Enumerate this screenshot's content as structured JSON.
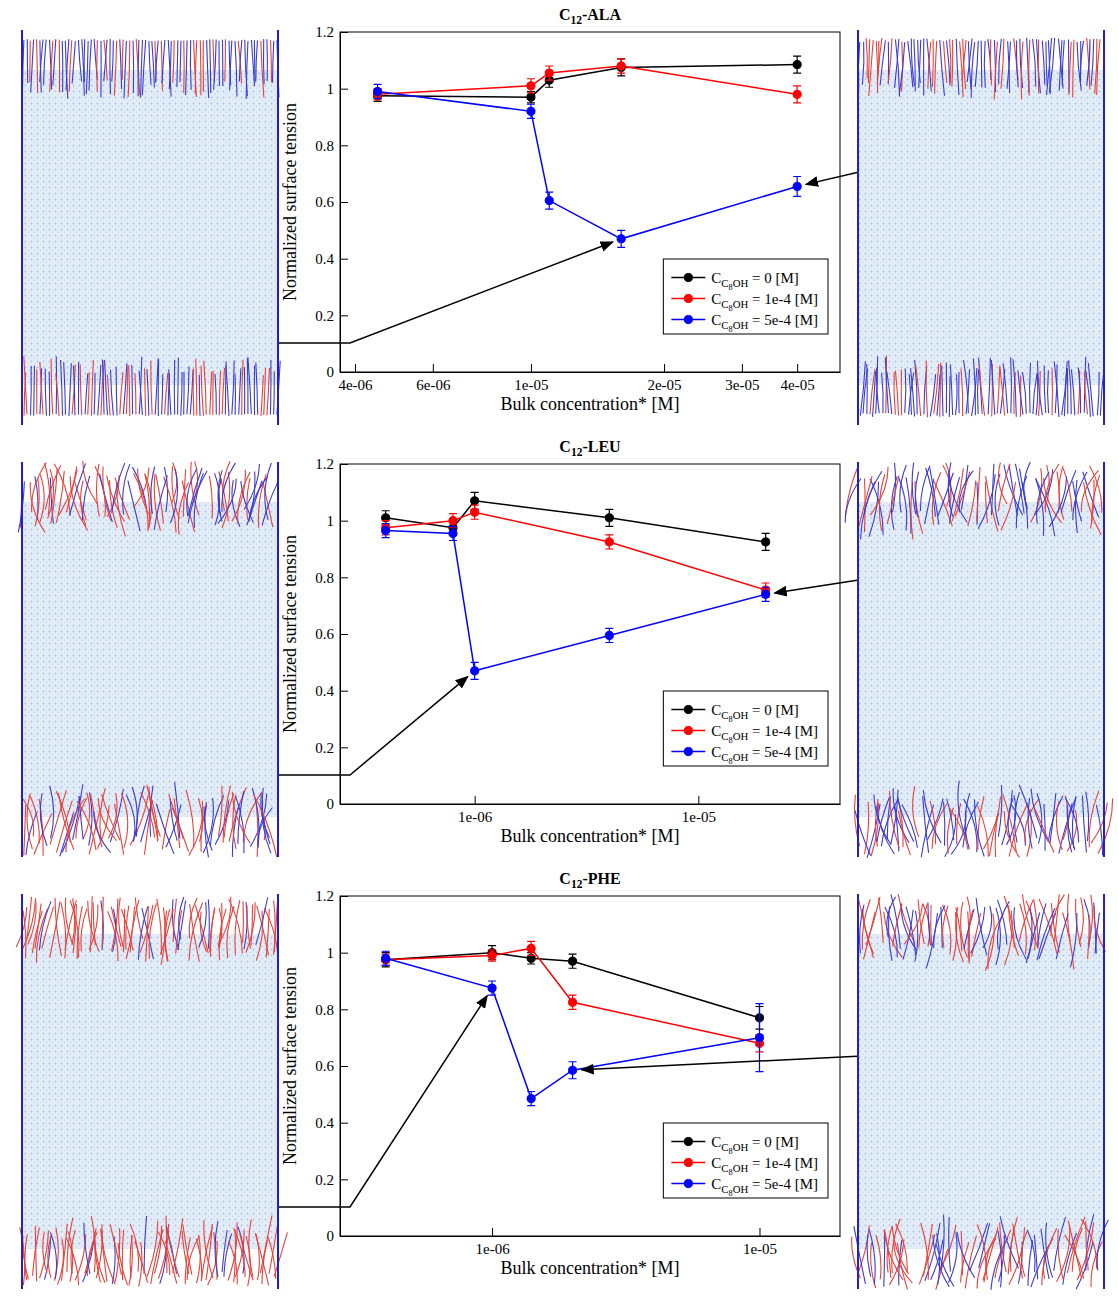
{
  "chart_data": [
    {
      "type": "line",
      "title": "C12-ALA",
      "xlabel": "Bulk concentration* [M]",
      "ylabel": "Normalized surface tension",
      "log": "x",
      "marker": "circle",
      "legend": "lower right",
      "xlim": [
        3.7e-06,
        5e-05
      ],
      "xticks": [
        {
          "value": 4e-06,
          "label": "4e-06"
        },
        {
          "value": 6e-06,
          "label": "6e-06"
        },
        {
          "value": 1e-05,
          "label": "1e-05"
        },
        {
          "value": 2e-05,
          "label": "2e-05"
        },
        {
          "value": 3e-05,
          "label": "3e-05"
        },
        {
          "value": 4e-05,
          "label": "4e-05"
        }
      ],
      "ylim": [
        0,
        1.2
      ],
      "yticks": [
        0,
        0.2,
        0.4,
        0.6,
        0.8,
        1,
        1.2
      ],
      "x": [
        4.5e-06,
        1e-05,
        1.1e-05,
        1.6e-05,
        4e-05
      ],
      "series": [
        {
          "name": "CC8OH = 0 [M]",
          "color": "#000000",
          "values": [
            0.975,
            0.97,
            1.03,
            1.075,
            1.085
          ],
          "errors": [
            0.02,
            0.02,
            0.025,
            0.03,
            0.03
          ]
        },
        {
          "name": "CC8OH = 1e-4 [M]",
          "color": "#ff0000",
          "values": [
            0.98,
            1.01,
            1.055,
            1.08,
            0.98
          ],
          "errors": [
            0.02,
            0.025,
            0.025,
            0.025,
            0.03
          ]
        },
        {
          "name": "CC8OH = 5e-4 [M]",
          "color": "#0000ff",
          "values": [
            0.99,
            0.92,
            0.605,
            0.47,
            0.655
          ],
          "errors": [
            0.025,
            0.025,
            0.03,
            0.03,
            0.035
          ]
        }
      ]
    },
    {
      "type": "line",
      "title": "C12-LEU",
      "xlabel": "Bulk concentration* [M]",
      "ylabel": "Normalized surface tension",
      "log": "x",
      "marker": "circle",
      "legend": "lower right",
      "xlim": [
        2.5e-07,
        4.3e-05
      ],
      "xticks": [
        {
          "value": 1e-06,
          "label": "1e-06"
        },
        {
          "value": 1e-05,
          "label": "1e-05"
        }
      ],
      "ylim": [
        0,
        1.2
      ],
      "yticks": [
        0,
        0.2,
        0.4,
        0.6,
        0.8,
        1,
        1.2
      ],
      "x": [
        4e-07,
        8e-07,
        1e-06,
        4e-06,
        2e-05
      ],
      "series": [
        {
          "name": "CC8OH = 0 [M]",
          "color": "#000000",
          "values": [
            1.01,
            0.975,
            1.07,
            1.01,
            0.925
          ],
          "errors": [
            0.025,
            0.025,
            0.03,
            0.03,
            0.03
          ]
        },
        {
          "name": "CC8OH = 1e-4 [M]",
          "color": "#ff0000",
          "values": [
            0.975,
            1.0,
            1.03,
            0.925,
            0.755
          ],
          "errors": [
            0.025,
            0.025,
            0.025,
            0.025,
            0.025
          ]
        },
        {
          "name": "CC8OH = 5e-4 [M]",
          "color": "#0000ff",
          "values": [
            0.965,
            0.955,
            0.47,
            0.595,
            0.74
          ],
          "errors": [
            0.025,
            0.025,
            0.03,
            0.025,
            0.025
          ]
        }
      ]
    },
    {
      "type": "line",
      "title": "C12-PHE",
      "xlabel": "Bulk concentration* [M]",
      "ylabel": "Normalized surface tension",
      "log": "x",
      "marker": "circle",
      "legend": "lower right",
      "xlim": [
        2.7e-07,
        2e-05
      ],
      "xticks": [
        {
          "value": 1e-06,
          "label": "1e-06"
        },
        {
          "value": 1e-05,
          "label": "1e-05"
        }
      ],
      "ylim": [
        0,
        1.2
      ],
      "yticks": [
        0,
        0.2,
        0.4,
        0.6,
        0.8,
        1,
        1.2
      ],
      "x": [
        4e-07,
        1e-06,
        1.4e-06,
        2e-06,
        1e-05
      ],
      "series": [
        {
          "name": "CC8OH = 0 [M]",
          "color": "#000000",
          "values": [
            0.975,
            1.0,
            0.98,
            0.97,
            0.77
          ],
          "errors": [
            0.025,
            0.025,
            0.02,
            0.025,
            0.04
          ]
        },
        {
          "name": "CC8OH = 1e-4 [M]",
          "color": "#ff0000",
          "values": [
            0.975,
            0.99,
            1.015,
            0.825,
            0.68
          ],
          "errors": [
            0.02,
            0.02,
            0.025,
            0.025,
            0.03
          ]
        },
        {
          "name": "CC8OH = 5e-4 [M]",
          "color": "#0000ff",
          "values": [
            0.98,
            0.875,
            0.485,
            0.585,
            0.7
          ],
          "errors": [
            0.025,
            0.025,
            0.025,
            0.03,
            0.12
          ]
        }
      ]
    }
  ]
}
